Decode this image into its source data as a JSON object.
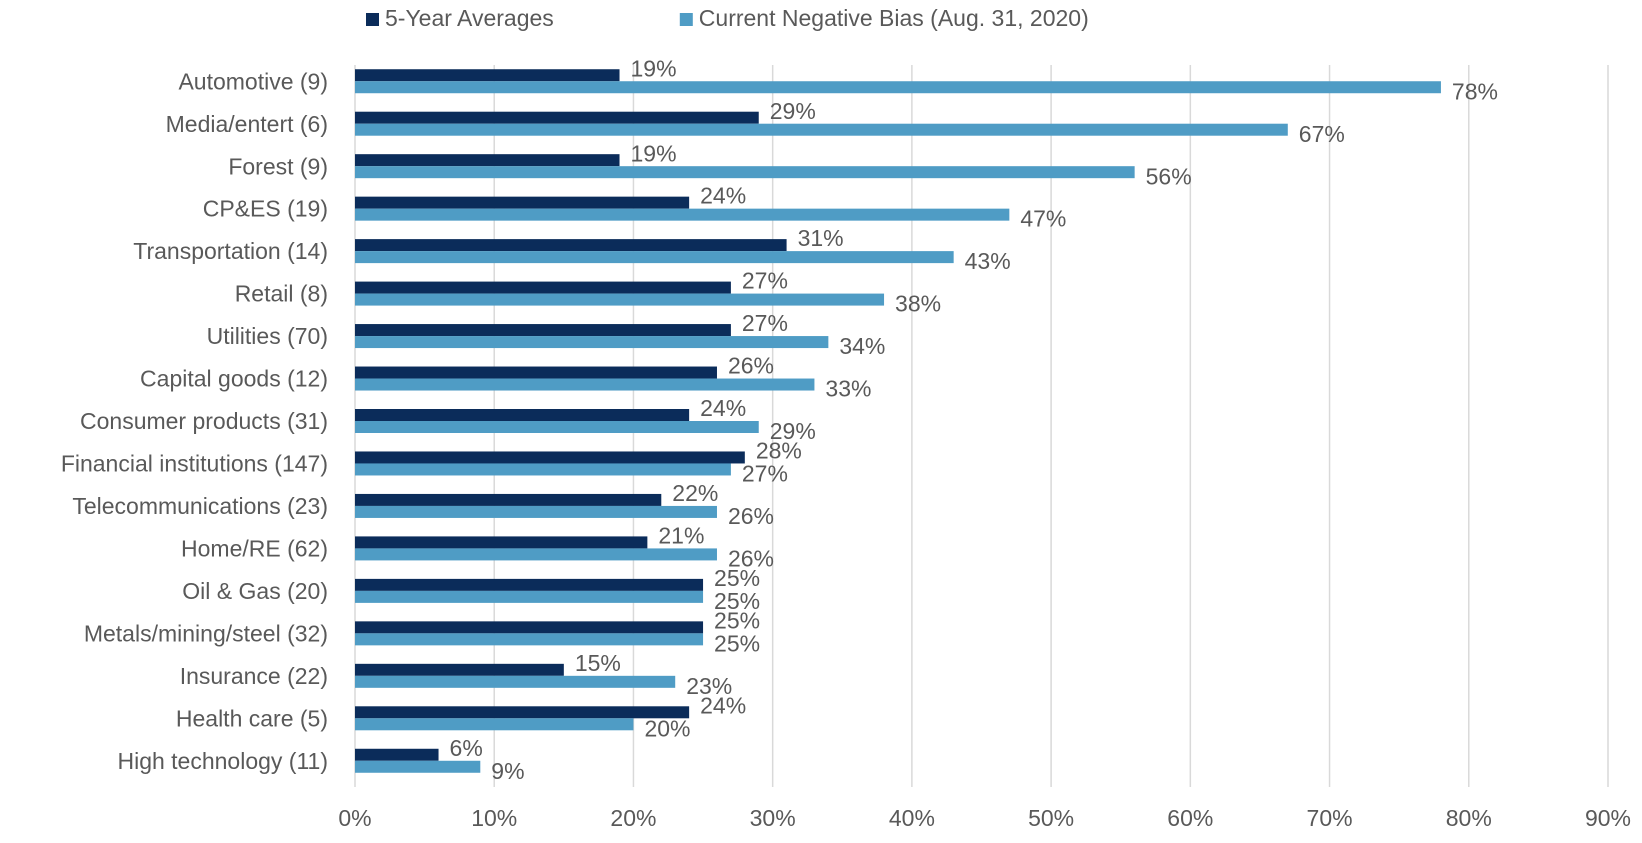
{
  "chart_data": {
    "type": "bar",
    "orientation": "horizontal",
    "categories": [
      "Automotive (9)",
      "Media/entert (6)",
      "Forest (9)",
      "CP&ES (19)",
      "Transportation (14)",
      "Retail (8)",
      "Utilities (70)",
      "Capital goods (12)",
      "Consumer products (31)",
      "Financial institutions (147)",
      "Telecommunications (23)",
      "Home/RE (62)",
      "Oil & Gas (20)",
      "Metals/mining/steel (32)",
      "Insurance (22)",
      "Health care (5)",
      "High technology (11)"
    ],
    "series": [
      {
        "name": "5-Year Averages",
        "color": "#0b2c5a",
        "values": [
          19,
          29,
          19,
          24,
          31,
          27,
          27,
          26,
          24,
          28,
          22,
          21,
          25,
          25,
          15,
          24,
          6
        ],
        "value_labels": [
          "19%",
          "29%",
          "19%",
          "24%",
          "31%",
          "27%",
          "27%",
          "26%",
          "24%",
          "28%",
          "22%",
          "21%",
          "25%",
          "25%",
          "15%",
          "24%",
          "6%"
        ]
      },
      {
        "name": "Current Negative Bias (Aug. 31, 2020)",
        "color": "#4f9cc5",
        "values": [
          78,
          67,
          56,
          47,
          43,
          38,
          34,
          33,
          29,
          27,
          26,
          26,
          25,
          25,
          23,
          20,
          9
        ],
        "value_labels": [
          "78%",
          "67%",
          "56%",
          "47%",
          "43%",
          "38%",
          "34%",
          "33%",
          "29%",
          "27%",
          "26%",
          "26%",
          "25%",
          "25%",
          "23%",
          "20%",
          "9%"
        ]
      }
    ],
    "xlim": [
      0,
      90
    ],
    "xticks": [
      {
        "value": 0,
        "label": "0%"
      },
      {
        "value": 10,
        "label": "10%"
      },
      {
        "value": 20,
        "label": "20%"
      },
      {
        "value": 30,
        "label": "30%"
      },
      {
        "value": 40,
        "label": "40%"
      },
      {
        "value": 50,
        "label": "50%"
      },
      {
        "value": 60,
        "label": "60%"
      },
      {
        "value": 70,
        "label": "70%"
      },
      {
        "value": 80,
        "label": "80%"
      },
      {
        "value": 90,
        "label": "90%"
      }
    ],
    "grid": true,
    "legend": "top"
  }
}
